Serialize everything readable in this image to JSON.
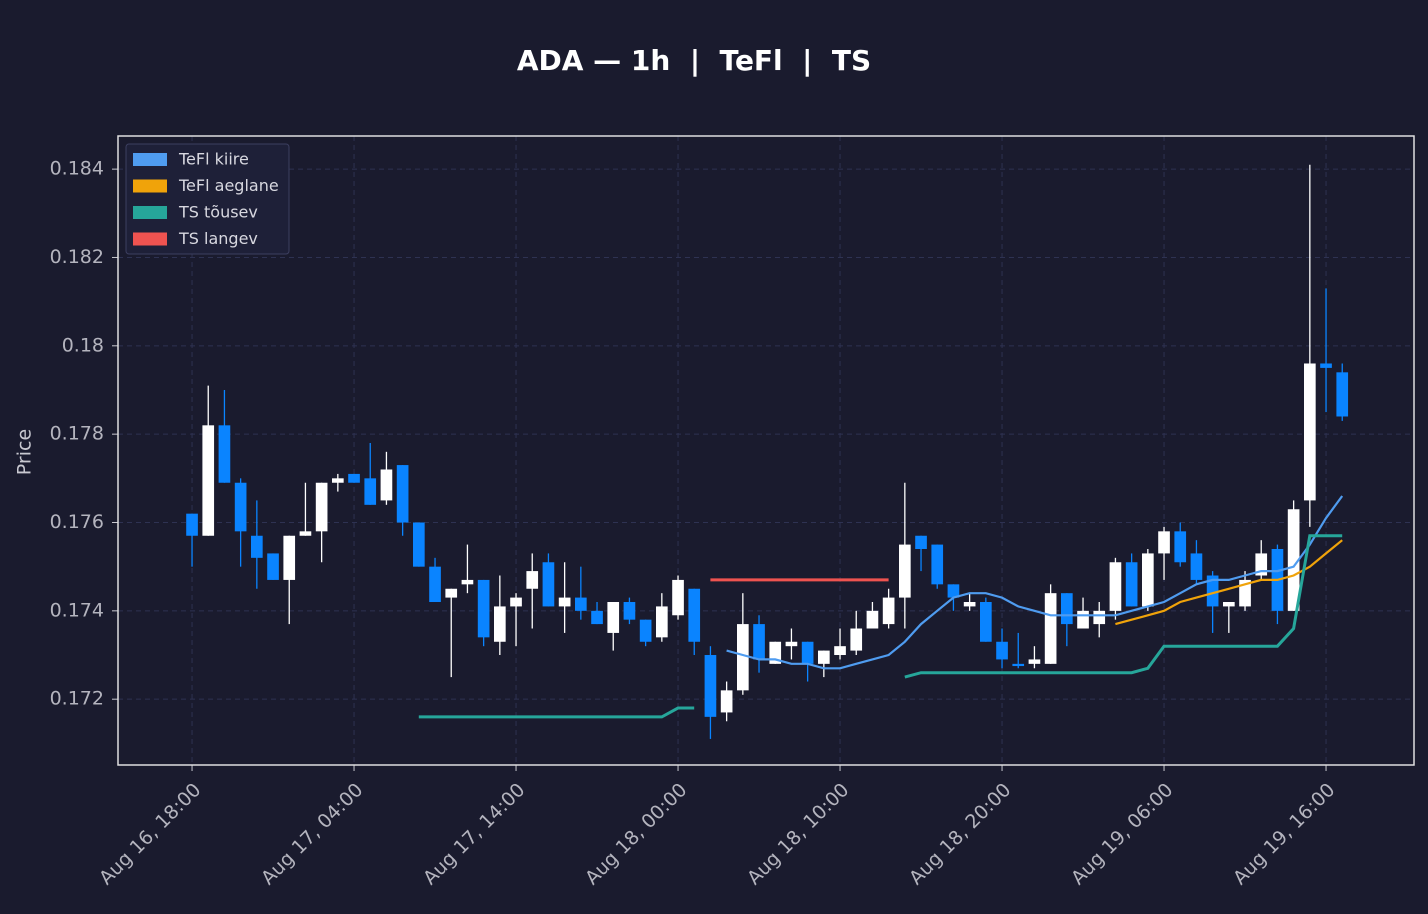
{
  "chart_data": {
    "type": "candlestick",
    "title": "ADA — 1h  |  TeFl  |  TS",
    "y_label": "Price",
    "up_color": "#ffffff",
    "down_color": "#0a84ff",
    "grid": true,
    "legend": "upper left",
    "xlim": [
      -4.57,
      75.43
    ],
    "xticks": [
      {
        "value": 0,
        "label": "Aug 16, 18:00"
      },
      {
        "value": 10,
        "label": "Aug 17, 04:00"
      },
      {
        "value": 20,
        "label": "Aug 17, 14:00"
      },
      {
        "value": 30,
        "label": "Aug 18, 00:00"
      },
      {
        "value": 40,
        "label": "Aug 18, 10:00"
      },
      {
        "value": 50,
        "label": "Aug 18, 20:00"
      },
      {
        "value": 60,
        "label": "Aug 19, 06:00"
      },
      {
        "value": 70,
        "label": "Aug 19, 16:00"
      }
    ],
    "ylim": [
      0.17051,
      0.18475
    ],
    "yticks": [
      0.172,
      0.174,
      0.176,
      0.178,
      0.18,
      0.182,
      0.184
    ],
    "open": [
      0.1762,
      0.1757,
      0.1782,
      0.1769,
      0.1757,
      0.1753,
      0.1747,
      0.1757,
      0.1758,
      0.1769,
      0.1771,
      0.177,
      0.1765,
      0.1773,
      0.176,
      0.175,
      0.1743,
      0.1746,
      0.1747,
      0.1733,
      0.1741,
      0.1745,
      0.1751,
      0.1741,
      0.1743,
      0.174,
      0.1735,
      0.1742,
      0.1738,
      0.1734,
      0.1739,
      0.1745,
      0.173,
      0.1717,
      0.1722,
      0.1737,
      0.1728,
      0.1732,
      0.1733,
      0.1728,
      0.173,
      0.1731,
      0.1736,
      0.1737,
      0.1743,
      0.1757,
      0.1755,
      0.1746,
      0.1741,
      0.1742,
      0.1733,
      0.1728,
      0.1728,
      0.1728,
      0.1744,
      0.1736,
      0.1737,
      0.174,
      0.1751,
      0.1741,
      0.1753,
      0.1758,
      0.1753,
      0.1748,
      0.1741,
      0.1741,
      0.1748,
      0.1754,
      0.174,
      0.1765,
      0.1796,
      0.1794
    ],
    "high": [
      0.1762,
      0.1791,
      0.179,
      0.177,
      0.1765,
      0.1753,
      0.1757,
      0.1769,
      0.1769,
      0.1771,
      0.1771,
      0.1778,
      0.1776,
      0.1773,
      0.176,
      0.1752,
      0.1745,
      0.1755,
      0.1747,
      0.1748,
      0.1744,
      0.1753,
      0.1753,
      0.1751,
      0.175,
      0.1742,
      0.1742,
      0.1743,
      0.1738,
      0.1744,
      0.1748,
      0.1745,
      0.1732,
      0.1724,
      0.1744,
      0.1739,
      0.1733,
      0.1736,
      0.1733,
      0.1731,
      0.1736,
      0.174,
      0.1742,
      0.1745,
      0.1769,
      0.1757,
      0.1755,
      0.1746,
      0.1744,
      0.1743,
      0.1736,
      0.1735,
      0.1732,
      0.1746,
      0.1744,
      0.1743,
      0.1742,
      0.1752,
      0.1753,
      0.1754,
      0.1759,
      0.176,
      0.1756,
      0.1749,
      0.1742,
      0.1749,
      0.1756,
      0.1755,
      0.1765,
      0.1841,
      0.1813,
      0.1796
    ],
    "low": [
      0.175,
      0.1757,
      0.1769,
      0.175,
      0.1745,
      0.1747,
      0.1737,
      0.1757,
      0.1751,
      0.1767,
      0.1769,
      0.1764,
      0.1764,
      0.1757,
      0.175,
      0.1742,
      0.1725,
      0.1744,
      0.1732,
      0.173,
      0.1732,
      0.1736,
      0.1741,
      0.1735,
      0.1738,
      0.1737,
      0.1731,
      0.1737,
      0.1732,
      0.1733,
      0.1738,
      0.173,
      0.1711,
      0.1715,
      0.1721,
      0.1726,
      0.1728,
      0.1729,
      0.1724,
      0.1725,
      0.1729,
      0.173,
      0.1736,
      0.1736,
      0.1736,
      0.1749,
      0.1745,
      0.174,
      0.174,
      0.1733,
      0.1727,
      0.1727,
      0.1727,
      0.1728,
      0.1732,
      0.1736,
      0.1734,
      0.1738,
      0.1741,
      0.174,
      0.1747,
      0.175,
      0.1746,
      0.1735,
      0.1735,
      0.174,
      0.1747,
      0.1737,
      0.174,
      0.1759,
      0.1785,
      0.1783
    ],
    "close": [
      0.1757,
      0.1782,
      0.1769,
      0.1758,
      0.1752,
      0.1747,
      0.1757,
      0.1758,
      0.1769,
      0.177,
      0.1769,
      0.1764,
      0.1772,
      0.176,
      0.175,
      0.1742,
      0.1745,
      0.1747,
      0.1734,
      0.1741,
      0.1743,
      0.1749,
      0.1741,
      0.1743,
      0.174,
      0.1737,
      0.1742,
      0.1738,
      0.1733,
      0.1741,
      0.1747,
      0.1733,
      0.1716,
      0.1722,
      0.1737,
      0.1729,
      0.1733,
      0.1733,
      0.1728,
      0.1731,
      0.1732,
      0.1736,
      0.174,
      0.1743,
      0.1755,
      0.1754,
      0.1746,
      0.1743,
      0.1742,
      0.1733,
      0.1729,
      0.17275,
      0.1729,
      0.1744,
      0.1737,
      0.174,
      0.174,
      0.1751,
      0.1741,
      0.1753,
      0.1758,
      0.1751,
      0.1747,
      0.1741,
      0.1742,
      0.1747,
      0.1753,
      0.174,
      0.1763,
      0.1796,
      0.1795,
      0.1784
    ],
    "series": [
      {
        "name": "TeFl kiire",
        "color": "#4f9cf0",
        "values": [
          null,
          null,
          null,
          null,
          null,
          null,
          null,
          null,
          null,
          null,
          null,
          null,
          null,
          null,
          null,
          null,
          null,
          null,
          null,
          null,
          null,
          null,
          null,
          null,
          null,
          null,
          null,
          null,
          null,
          null,
          null,
          null,
          null,
          0.1731,
          0.173,
          0.1729,
          0.1729,
          0.1728,
          0.1728,
          0.1727,
          0.1727,
          0.1728,
          0.1729,
          0.173,
          0.1733,
          0.1737,
          0.174,
          0.1743,
          0.1744,
          0.1744,
          0.1743,
          0.1741,
          0.174,
          0.1739,
          0.1739,
          0.1739,
          0.1739,
          0.1739,
          0.174,
          0.1741,
          0.1742,
          0.1744,
          0.1746,
          0.1747,
          0.1747,
          0.1748,
          0.1749,
          0.1749,
          0.175,
          0.1755,
          0.1761,
          0.1766
        ]
      },
      {
        "name": "TeFl aeglane",
        "color": "#f0a30a",
        "values": [
          null,
          null,
          null,
          null,
          null,
          null,
          null,
          null,
          null,
          null,
          null,
          null,
          null,
          null,
          null,
          null,
          null,
          null,
          null,
          null,
          null,
          null,
          null,
          null,
          null,
          null,
          null,
          null,
          null,
          null,
          null,
          null,
          null,
          null,
          null,
          null,
          null,
          null,
          null,
          null,
          null,
          null,
          null,
          null,
          null,
          null,
          null,
          null,
          null,
          null,
          null,
          null,
          null,
          null,
          null,
          null,
          null,
          0.1737,
          0.1738,
          0.1739,
          0.174,
          0.1742,
          0.1743,
          0.1744,
          0.1745,
          0.1746,
          0.1747,
          0.1747,
          0.1748,
          0.175,
          0.1753,
          0.1756
        ]
      },
      {
        "name": "TS tõusev",
        "color": "#26a69a",
        "values": [
          null,
          null,
          null,
          null,
          null,
          null,
          null,
          null,
          null,
          null,
          null,
          null,
          null,
          null,
          0.1716,
          0.1716,
          0.1716,
          0.1716,
          0.1716,
          0.1716,
          0.1716,
          0.1716,
          0.1716,
          0.1716,
          0.1716,
          0.1716,
          0.1716,
          0.1716,
          0.1716,
          0.1716,
          0.1718,
          0.1718,
          null,
          null,
          null,
          null,
          null,
          null,
          null,
          null,
          null,
          null,
          null,
          null,
          0.1725,
          0.1726,
          0.1726,
          0.1726,
          0.1726,
          0.1726,
          0.1726,
          0.1726,
          0.1726,
          0.1726,
          0.1726,
          0.1726,
          0.1726,
          0.1726,
          0.1726,
          0.1727,
          0.1732,
          0.1732,
          0.1732,
          0.1732,
          0.1732,
          0.1732,
          0.1732,
          0.1732,
          0.1736,
          0.1757,
          0.1757,
          0.1757
        ]
      },
      {
        "name": "TS langev",
        "color": "#ef5350",
        "values": [
          null,
          null,
          null,
          null,
          null,
          null,
          null,
          null,
          null,
          null,
          null,
          null,
          null,
          null,
          null,
          null,
          null,
          null,
          null,
          null,
          null,
          null,
          null,
          null,
          null,
          null,
          null,
          null,
          null,
          null,
          null,
          null,
          0.1747,
          0.1747,
          0.1747,
          0.1747,
          0.1747,
          0.1747,
          0.1747,
          0.1747,
          0.1747,
          0.1747,
          0.1747,
          0.1747,
          null,
          null,
          null,
          null,
          null,
          null,
          null,
          null,
          null,
          null,
          null,
          null,
          null,
          null,
          null,
          null,
          null,
          null,
          null,
          null,
          null,
          null,
          null,
          null,
          null,
          null,
          null,
          null
        ]
      }
    ]
  }
}
